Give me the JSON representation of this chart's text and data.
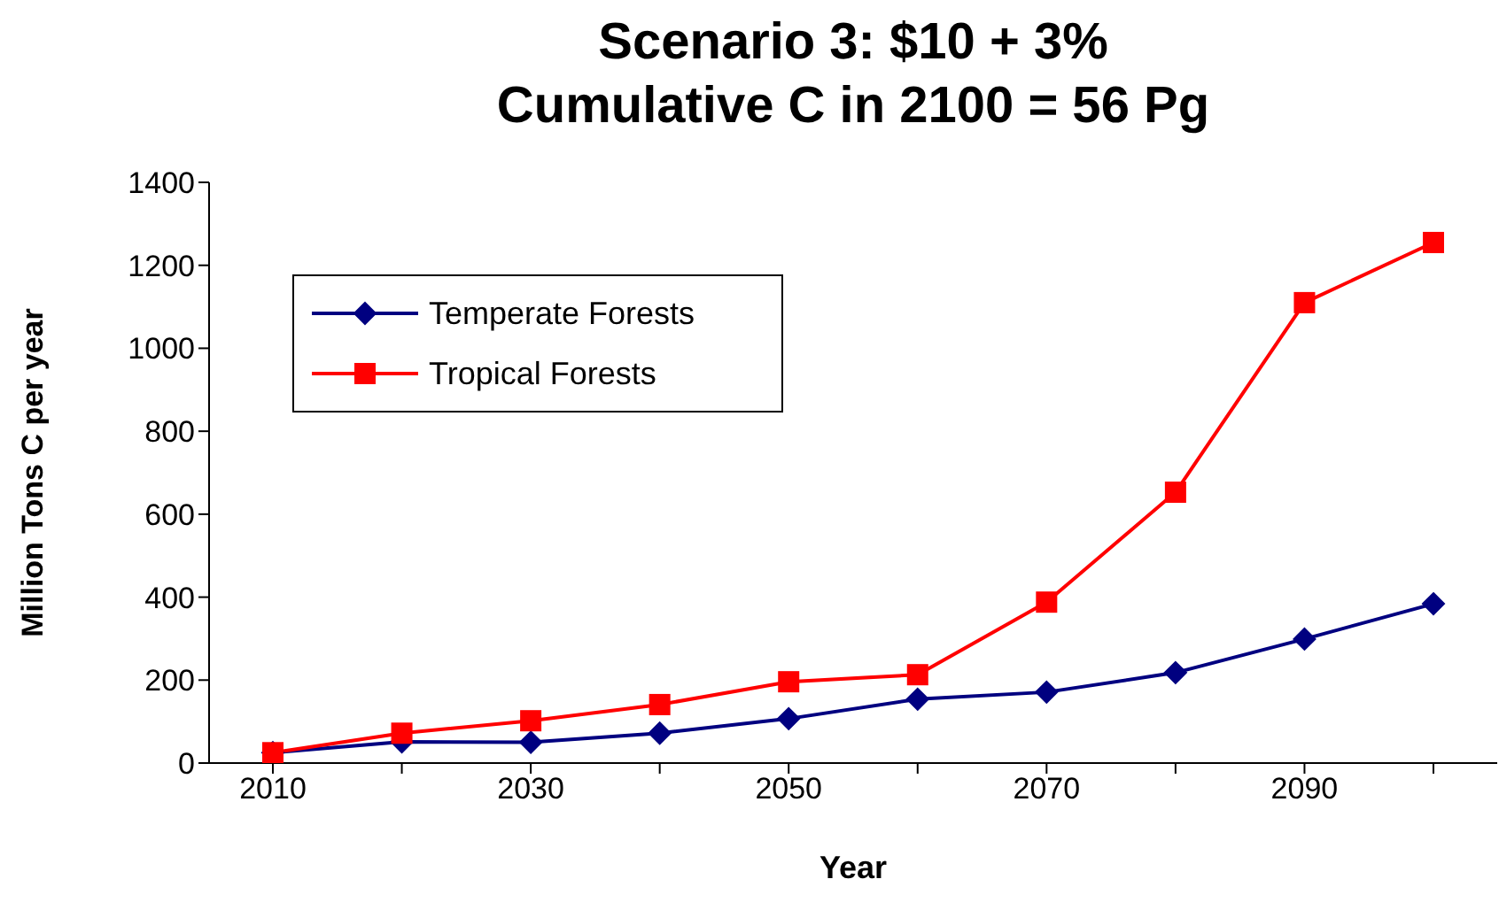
{
  "chart_data": {
    "type": "line",
    "title": "Scenario 3: $10 + 3%\nCumulative C in 2100 = 56 Pg",
    "xlabel": "Year",
    "ylabel": "Million Tons C per year",
    "categories": [
      "2010",
      null,
      "2030",
      null,
      "2050",
      null,
      "2070",
      null,
      "2090",
      null
    ],
    "series": [
      {
        "name": "Temperate Forests",
        "color": "#000080",
        "marker": "diamond",
        "values": [
          25,
          51,
          50,
          72,
          107,
          154,
          171,
          218,
          299,
          384
        ]
      },
      {
        "name": "Tropical Forests",
        "color": "#ff0000",
        "marker": "square",
        "values": [
          25,
          72,
          102,
          141,
          196,
          213,
          388,
          653,
          1110,
          1255
        ]
      }
    ],
    "ylim": [
      0,
      1400
    ],
    "yticks": [
      0,
      200,
      400,
      600,
      800,
      1000,
      1200,
      1400
    ],
    "grid": false,
    "legend": "top left"
  }
}
